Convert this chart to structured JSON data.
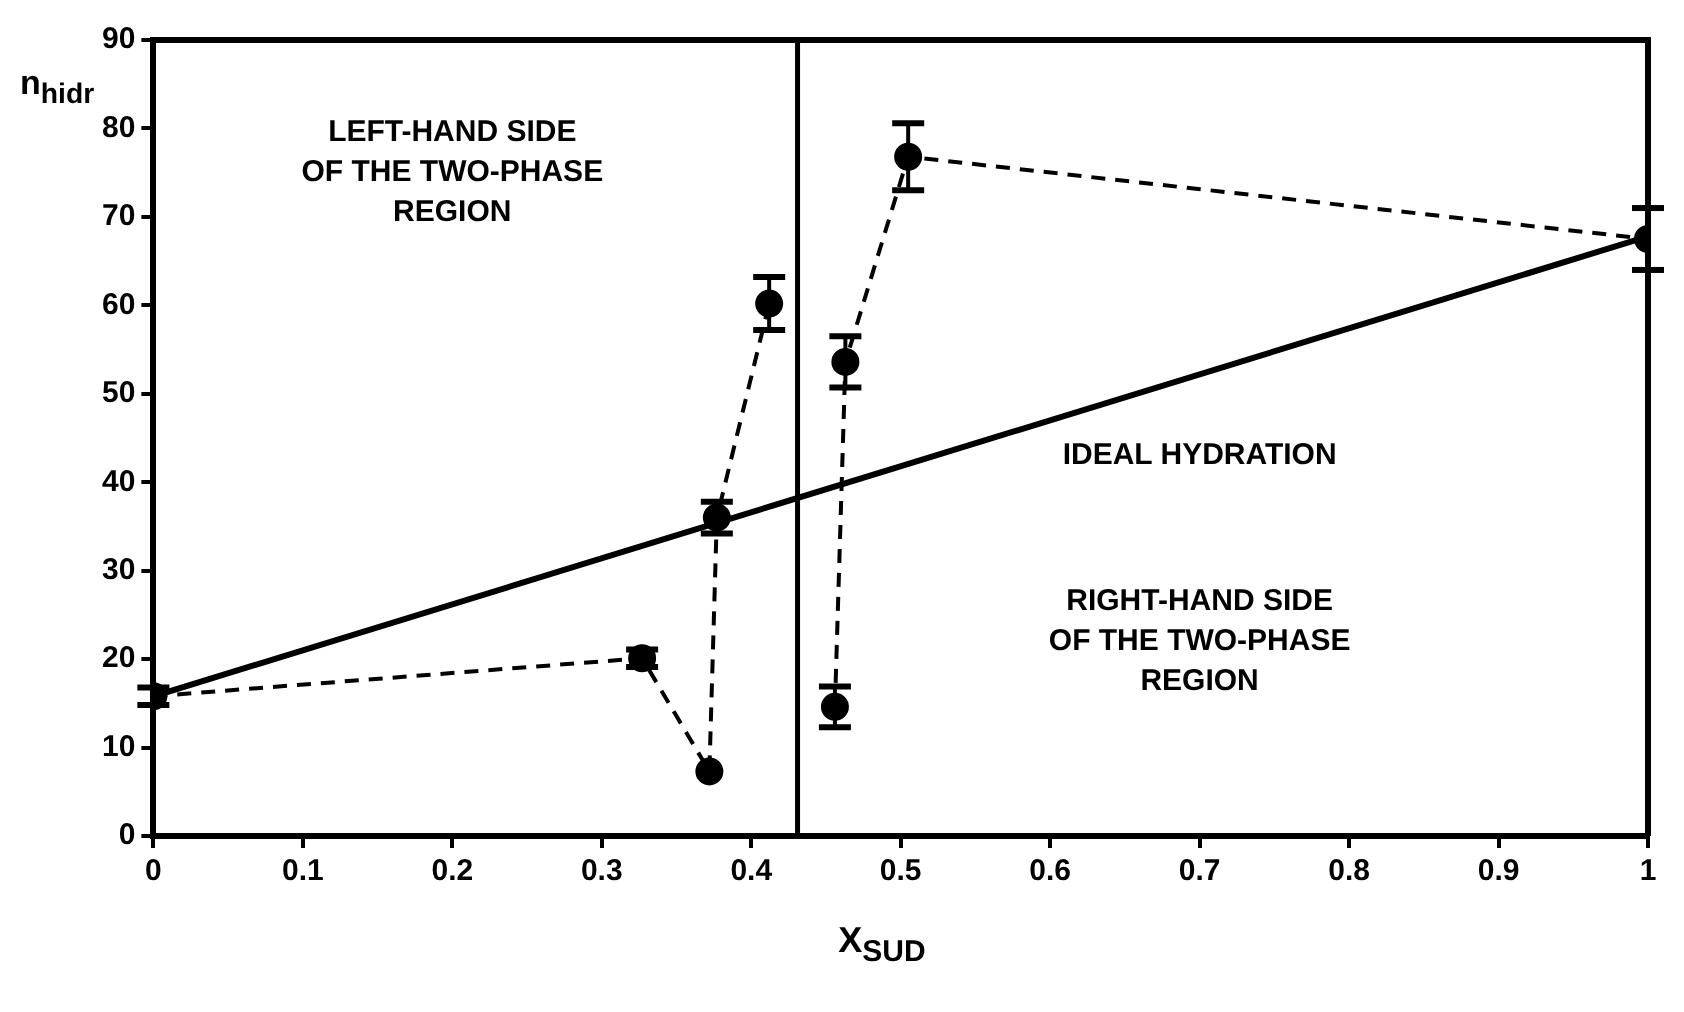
{
  "chart_data": {
    "type": "line",
    "xlabel": "X$_{SUD}$",
    "ylabel": "n$_{hidr}$",
    "xlim": [
      0,
      1
    ],
    "xticks": [
      0,
      0.1,
      0.2,
      0.3,
      0.4,
      0.5,
      0.6,
      0.7,
      0.8,
      0.9,
      1
    ],
    "ylim": [
      0,
      90
    ],
    "yticks": [
      0,
      10,
      20,
      30,
      40,
      50,
      60,
      70,
      80,
      90
    ],
    "grid": false,
    "legend": false,
    "marker": "circle",
    "line_style": "dashed",
    "series": [
      {
        "color": "#000000",
        "x": [
          0,
          0.327,
          0.372,
          0.377,
          0.412
        ],
        "values": [
          15.8,
          20.1,
          7.3,
          36,
          60.2
        ],
        "errors": [
          1,
          1,
          null,
          1.8,
          3
        ]
      },
      {
        "color": "#000000",
        "x": [
          0.456,
          0.463,
          0.505,
          1
        ],
        "values": [
          14.6,
          53.6,
          76.8,
          67.5
        ],
        "errors": [
          2.3,
          2.9,
          3.8,
          3.5
        ]
      },
      {
        "color": "#000000",
        "x": [
          0,
          1
        ],
        "values": [
          15.8,
          67.8
        ],
        "marker": "none",
        "line_style": "solid"
      }
    ],
    "ref_lines": [
      {
        "axis": "x",
        "value": 0.431,
        "color": "#000000",
        "line_style": "solid"
      }
    ],
    "annotations": [
      "LEFT-HAND SIDE\nOF THE TWO-PHASE\nREGION",
      "IDEAL HYDRATION",
      "RIGHT-HAND SIDE\nOF THE TWO-PHASE\nREGION"
    ]
  }
}
